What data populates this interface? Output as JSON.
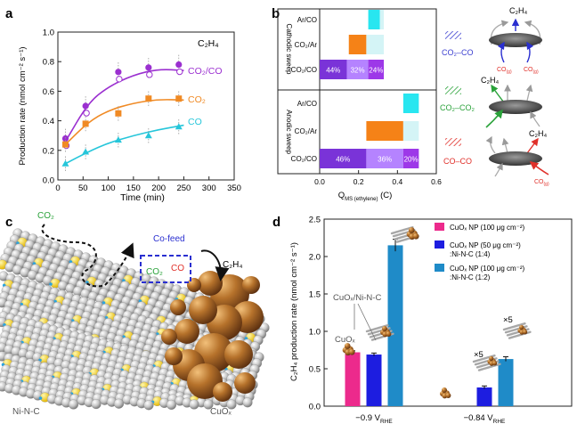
{
  "panel_labels": {
    "a": "a",
    "b": "b",
    "c": "c",
    "d": "d"
  },
  "chart_data": [
    {
      "id": "a",
      "type": "scatter",
      "title": "C₂H₄",
      "xlabel": "Time (min)",
      "ylabel": "Production rate (nmol cm⁻² s⁻¹)",
      "xlim": [
        0,
        350
      ],
      "ylim": [
        0,
        1.0
      ],
      "xticks": [
        "0",
        "50",
        "100",
        "150",
        "200",
        "250",
        "300",
        "350"
      ],
      "yticks": [
        "0.0",
        "0.2",
        "0.4",
        "0.6",
        "0.8",
        "1.0"
      ],
      "series": [
        {
          "name": "CO₂/CO",
          "color": "#9b30d0",
          "x": [
            15,
            55,
            120,
            180,
            240
          ],
          "y": [
            0.28,
            0.5,
            0.73,
            0.76,
            0.78
          ],
          "fit": [
            [
              15,
              0.26
            ],
            [
              60,
              0.52
            ],
            [
              100,
              0.63
            ],
            [
              150,
              0.71
            ],
            [
              200,
              0.75
            ],
            [
              250,
              0.74
            ]
          ]
        },
        {
          "name": "CO₂",
          "color": "#f08a24",
          "x": [
            15,
            55,
            120,
            180,
            240
          ],
          "y": [
            0.24,
            0.38,
            0.45,
            0.55,
            0.55
          ],
          "fit": [
            [
              15,
              0.24
            ],
            [
              60,
              0.39
            ],
            [
              100,
              0.47
            ],
            [
              150,
              0.52
            ],
            [
              200,
              0.545
            ],
            [
              250,
              0.54
            ]
          ]
        },
        {
          "name": "CO",
          "color": "#26c6da",
          "x": [
            15,
            55,
            120,
            180,
            240
          ],
          "y": [
            0.11,
            0.19,
            0.27,
            0.3,
            0.36
          ],
          "fit": [
            [
              15,
              0.11
            ],
            [
              60,
              0.19
            ],
            [
              100,
              0.25
            ],
            [
              150,
              0.3
            ],
            [
              200,
              0.34
            ],
            [
              250,
              0.37
            ]
          ]
        }
      ]
    },
    {
      "id": "b",
      "type": "bar",
      "xlabel": "Q",
      "xlabel_sub": "MS (ethylene)",
      "xlabel_unit": " (C)",
      "xlim": [
        0,
        0.6
      ],
      "xticks": [
        "0.0",
        "0.2",
        "0.4",
        "0.6"
      ],
      "groups": [
        {
          "label": "Cathodic sweep",
          "rows": [
            {
              "cat": "Ar/CO",
              "segments": [
                {
                  "start": 0.25,
                  "end": 0.31,
                  "color": "#28e6f0"
                },
                {
                  "start": 0.31,
                  "end": 0.33,
                  "color": "#d4f4f6"
                }
              ]
            },
            {
              "cat": "CO₂/Ar",
              "segments": [
                {
                  "start": 0.15,
                  "end": 0.24,
                  "color": "#f58217"
                },
                {
                  "start": 0.24,
                  "end": 0.33,
                  "color": "#d4f4f6"
                }
              ]
            },
            {
              "cat": "CO₂/CO",
              "segments": [
                {
                  "start": 0.0,
                  "end": 0.14,
                  "color": "#7a33d8",
                  "label": "44%"
                },
                {
                  "start": 0.14,
                  "end": 0.25,
                  "color": "#b583ff",
                  "label": "32%"
                },
                {
                  "start": 0.25,
                  "end": 0.33,
                  "color": "#9d38e8",
                  "label": "24%"
                }
              ]
            }
          ]
        },
        {
          "label": "Anodic sweep",
          "rows": [
            {
              "cat": "Ar/CO",
              "segments": [
                {
                  "start": 0.43,
                  "end": 0.51,
                  "color": "#28e6f0"
                }
              ]
            },
            {
              "cat": "CO₂/Ar",
              "segments": [
                {
                  "start": 0.24,
                  "end": 0.43,
                  "color": "#f58217"
                },
                {
                  "start": 0.43,
                  "end": 0.51,
                  "color": "#d4f4f6"
                }
              ]
            },
            {
              "cat": "CO₂/CO",
              "segments": [
                {
                  "start": 0.0,
                  "end": 0.24,
                  "color": "#7a33d8",
                  "label": "46%"
                },
                {
                  "start": 0.24,
                  "end": 0.43,
                  "color": "#b583ff",
                  "label": "36%"
                },
                {
                  "start": 0.43,
                  "end": 0.51,
                  "color": "#9d38e8",
                  "label": "20%"
                }
              ]
            }
          ]
        }
      ]
    },
    {
      "id": "d",
      "type": "bar",
      "ylabel": "C₂H₄ production rate (nmol cm⁻² s⁻¹)",
      "ylim": [
        0,
        2.5
      ],
      "yticks": [
        "0.0",
        "0.5",
        "1.0",
        "1.5",
        "2.0",
        "2.5"
      ],
      "categories": [
        "−0.9 V",
        "−0.84 V"
      ],
      "category_sub": "RHE",
      "series": [
        {
          "name": "CuOₓ NP (100 μg cm⁻²)",
          "color": "#ec2a8c",
          "values": [
            0.72,
            null
          ]
        },
        {
          "name": "CuOₓ NP (50 μg cm⁻²) :Ni-N-C (1:4)",
          "color": "#1d1de0",
          "values": [
            0.69,
            0.25
          ]
        },
        {
          "name": "CuOₓ NP (100 μg cm⁻²) :Ni-N-C (1:2)",
          "color": "#1f8bc8",
          "values": [
            2.15,
            0.63
          ]
        }
      ],
      "errors": [
        [
          0.02,
          null
        ],
        [
          0.02,
          0.02
        ],
        [
          0.08,
          0.03
        ]
      ],
      "annotations": {
        "cuox": "CuOₓ",
        "cuox_nic": "CuOₓ/Ni-N-C",
        "x5_a": "×5",
        "x5_b": "×5"
      }
    }
  ],
  "panel_b_icons": {
    "row1": {
      "legend": "CO₂–CO",
      "top": "C₂H₄",
      "gas_left": "CO",
      "gas_left_sub": "(g)",
      "gas_right": "CO",
      "gas_right_sub": "(g)",
      "color": "#3b3fd0"
    },
    "row2": {
      "legend": "CO₂–CO₂",
      "top": "C₂H₄",
      "color": "#2aa23a"
    },
    "row3": {
      "legend": "CO–CO",
      "top": "C₂H₄",
      "gas": "CO",
      "gas_sub": "(g)",
      "color": "#e0302a"
    }
  },
  "panel_c": {
    "co2": "CO₂",
    "cofeed": "Co-feed",
    "box_co2": "CO₂",
    "box_co": "CO",
    "c2h4": "C₂H₄",
    "nic": "Ni-N-C",
    "cuox": "CuOₓ"
  }
}
